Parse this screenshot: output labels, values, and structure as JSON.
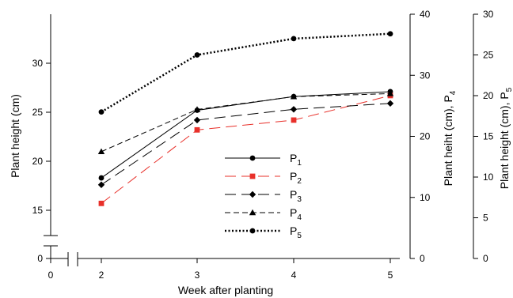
{
  "chart_data": {
    "type": "line",
    "x": [
      2,
      3,
      4,
      5
    ],
    "xlabel": "Week after planting",
    "xticks": [
      0,
      2,
      3,
      4,
      5
    ],
    "series": [
      {
        "name": "P1",
        "name_main": "P",
        "name_sub": "1",
        "axis": "left",
        "values": [
          18.3,
          25.2,
          26.6,
          27.1
        ],
        "color": "#000000",
        "dash": "solid",
        "width": 1,
        "marker": "circle"
      },
      {
        "name": "P2",
        "name_main": "P",
        "name_sub": "2",
        "axis": "left",
        "values": [
          15.7,
          23.2,
          24.2,
          26.7
        ],
        "color": "#e8302a",
        "dash": "long",
        "width": 1,
        "marker": "square"
      },
      {
        "name": "P3",
        "name_main": "P",
        "name_sub": "3",
        "axis": "left",
        "values": [
          17.6,
          24.2,
          25.3,
          25.9
        ],
        "color": "#000000",
        "dash": "long",
        "width": 1,
        "marker": "diamond"
      },
      {
        "name": "P4",
        "name_main": "P",
        "name_sub": "4",
        "axis": "right1",
        "values": [
          17.5,
          24.4,
          26.5,
          27.0
        ],
        "color": "#000000",
        "dash": "medium",
        "width": 1,
        "marker": "triangle"
      },
      {
        "name": "P5",
        "name_main": "P",
        "name_sub": "5",
        "axis": "right2",
        "values": [
          18.0,
          25.0,
          27.0,
          27.6
        ],
        "color": "#000000",
        "dash": "dotted",
        "width": 2.5,
        "marker": "circle"
      }
    ],
    "axes": {
      "left": {
        "label": "Plant height (cm)",
        "ticks": [
          0,
          15,
          20,
          25,
          30
        ],
        "range": [
          13.5,
          30
        ],
        "broken": true
      },
      "right1": {
        "label_main": "Plant heiht (cm), P",
        "label_sub": "4",
        "ticks": [
          0,
          10,
          20,
          30,
          40
        ],
        "range": [
          0,
          40
        ]
      },
      "right2": {
        "label_main": "Plant height (cm), P",
        "label_sub": "5",
        "ticks": [
          0,
          5,
          10,
          15,
          20,
          25,
          30
        ],
        "range": [
          0,
          30
        ]
      }
    },
    "legend": {
      "position": "center-bottom"
    },
    "grid": false
  }
}
